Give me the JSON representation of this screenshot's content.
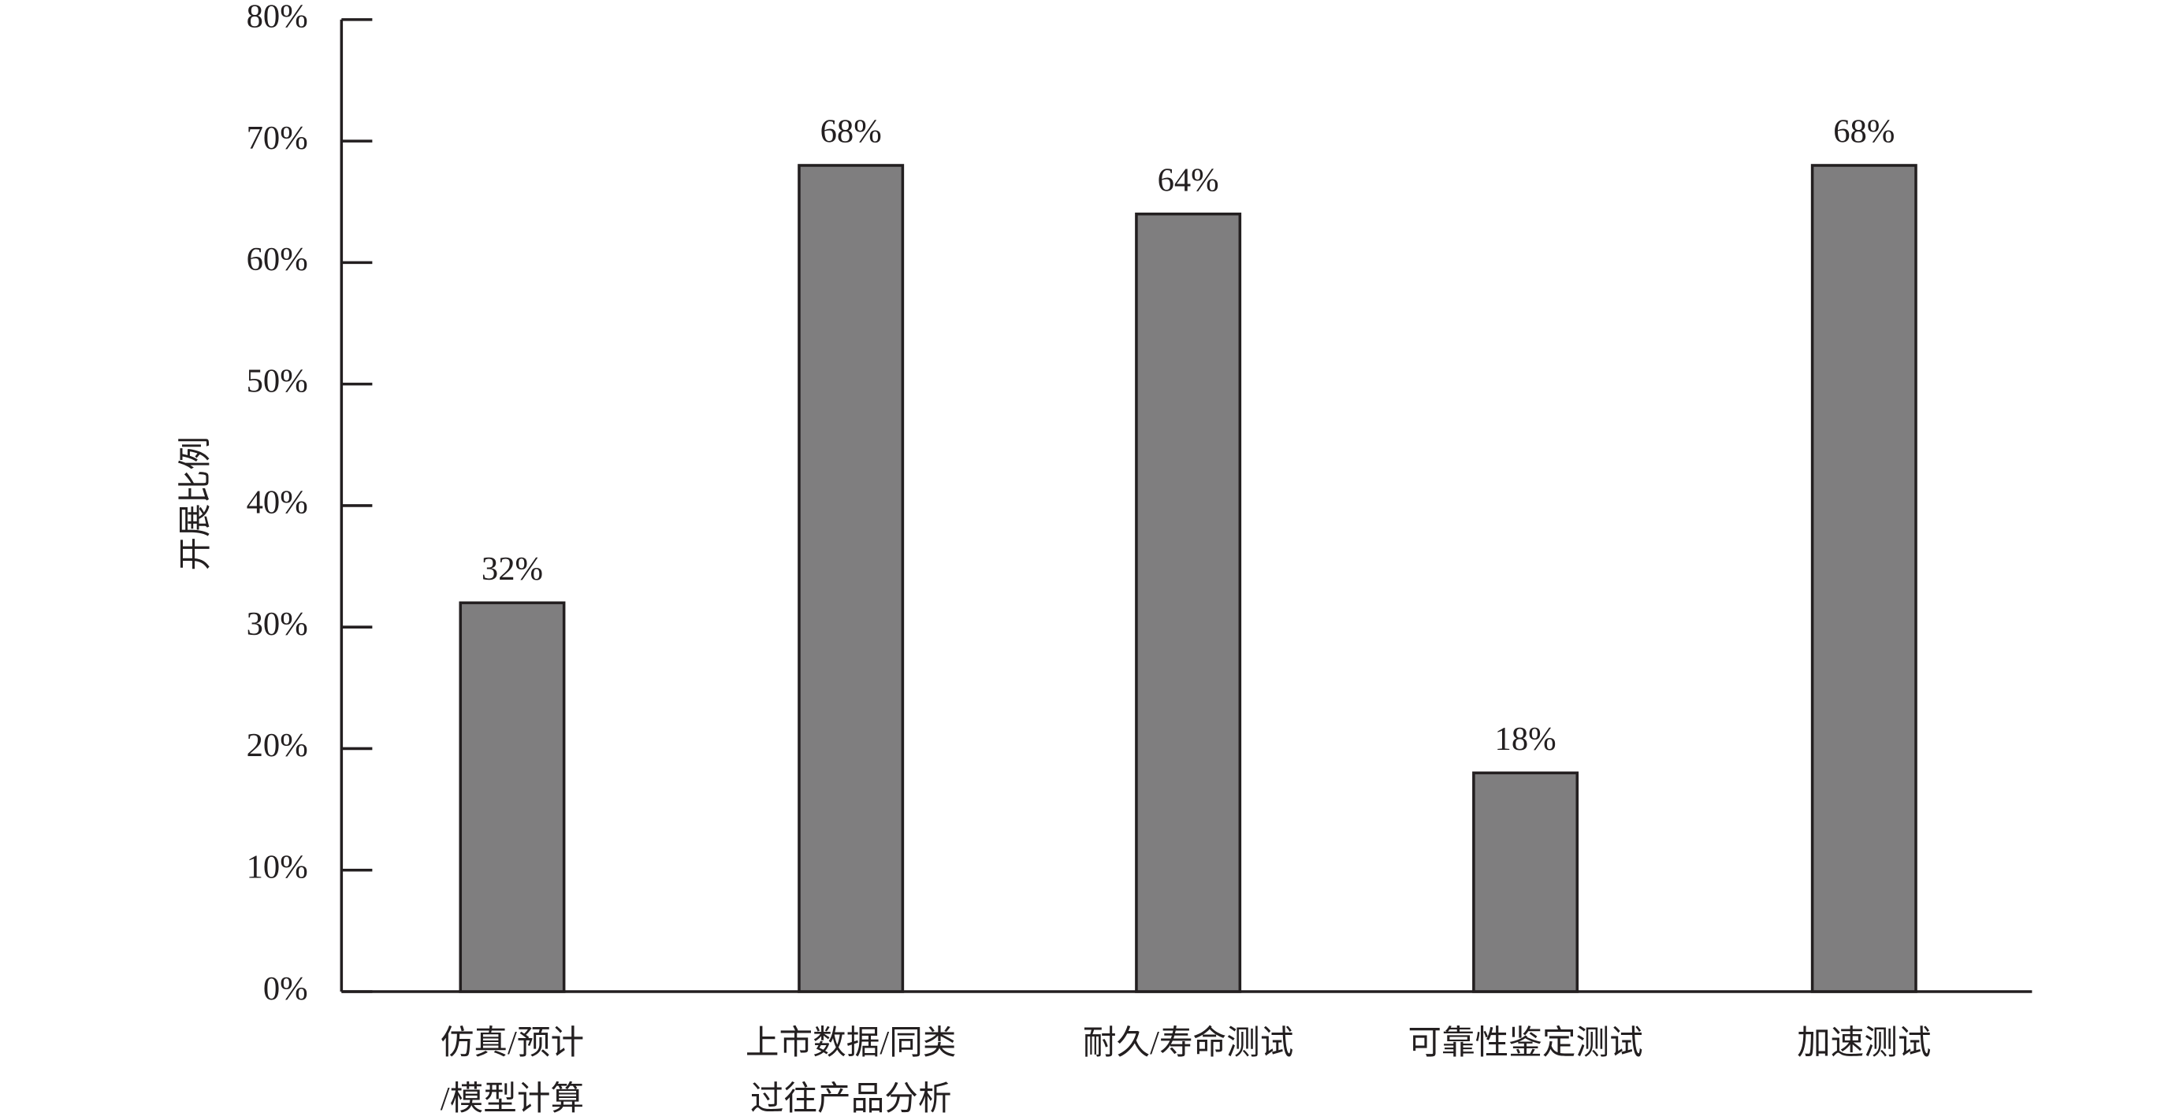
{
  "chart_data": {
    "type": "bar",
    "y_label": "开展比例",
    "categories": [
      [
        "仿真/预计",
        "/模型计算"
      ],
      [
        "上市数据/同类",
        "过往产品分析"
      ],
      [
        "耐久/寿命测试"
      ],
      [
        "可靠性鉴定测试"
      ],
      [
        "加速测试"
      ]
    ],
    "values": [
      32,
      68,
      64,
      18,
      68
    ],
    "value_labels": [
      "32%",
      "68%",
      "64%",
      "18%",
      "68%"
    ],
    "color": "#7f7e7f",
    "ylim": [
      0,
      80
    ],
    "yticks": [
      {
        "value": 0,
        "label": "0%"
      },
      {
        "value": 10,
        "label": "10%"
      },
      {
        "value": 20,
        "label": "20%"
      },
      {
        "value": 30,
        "label": "30%"
      },
      {
        "value": 40,
        "label": "40%"
      },
      {
        "value": 50,
        "label": "50%"
      },
      {
        "value": 60,
        "label": "60%"
      },
      {
        "value": 70,
        "label": "70%"
      },
      {
        "value": 80,
        "label": "80%"
      }
    ],
    "grid": false
  }
}
